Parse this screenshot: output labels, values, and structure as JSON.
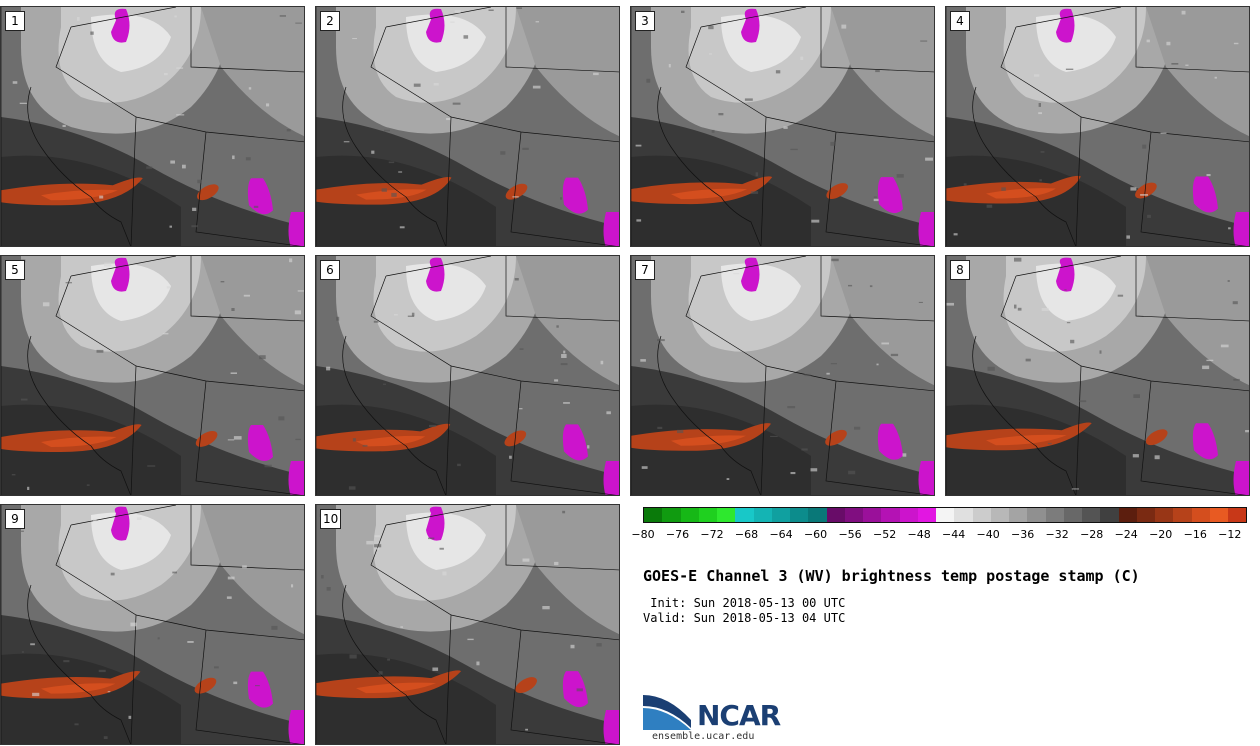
{
  "panels": [
    {
      "label": "1"
    },
    {
      "label": "2"
    },
    {
      "label": "3"
    },
    {
      "label": "4"
    },
    {
      "label": "5"
    },
    {
      "label": "6"
    },
    {
      "label": "7"
    },
    {
      "label": "8"
    },
    {
      "label": "9"
    },
    {
      "label": "10"
    }
  ],
  "colorbar": {
    "colors": [
      "#0a7a0a",
      "#109b10",
      "#16b816",
      "#1fd01f",
      "#2ee82e",
      "#18c8c8",
      "#14b4b4",
      "#10a0a0",
      "#0c8c8c",
      "#097878",
      "#680c68",
      "#800e80",
      "#9a109a",
      "#b412b4",
      "#cc14cc",
      "#e216e2",
      "#f4f4f4",
      "#e0e0e0",
      "#cccccc",
      "#b8b8b8",
      "#a4a4a4",
      "#909090",
      "#7c7c7c",
      "#686868",
      "#545454",
      "#404040",
      "#5c1e0e",
      "#7a2a12",
      "#983616",
      "#b6421a",
      "#d44e1e",
      "#e85a22",
      "#c83818"
    ],
    "ticks": [
      "−80",
      "−76",
      "−72",
      "−68",
      "−64",
      "−60",
      "−56",
      "−52",
      "−48",
      "−44",
      "−40",
      "−36",
      "−32",
      "−28",
      "−24",
      "−20",
      "−16",
      "−12"
    ]
  },
  "title": "GOES-E Channel 3 (WV) brightness temp postage stamp (C)",
  "init": " Init: Sun 2018-05-13 00 UTC",
  "valid": "Valid: Sun 2018-05-13 04 UTC",
  "logo": {
    "name": "NCAR",
    "url": "ensemble.ucar.edu",
    "color": "#1b3f73"
  },
  "field_colors": {
    "dark": "#3a3a3a",
    "mid": "#6e6e6e",
    "light": "#a8a8a8",
    "lighter": "#c8c8c8",
    "bright": "#e6e6e6",
    "magenta": "#cc14cc",
    "orange": "#b6421a",
    "deep_orange": "#d44e1e"
  }
}
